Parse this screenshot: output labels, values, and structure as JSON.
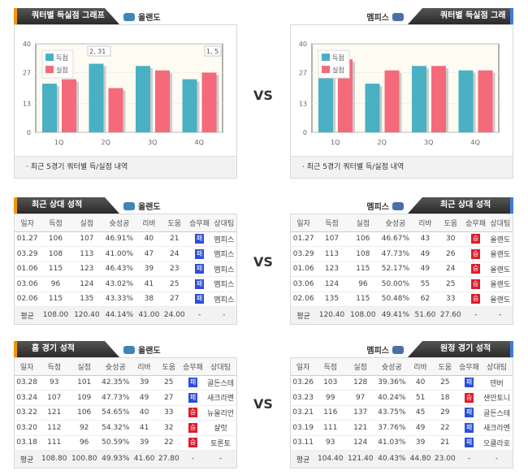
{
  "vs": "VS",
  "home_team": "올랜도",
  "away_team": "멤피스",
  "colors": {
    "score": "#4ab0c4",
    "lost": "#f56a7a",
    "win": "#e01c2c",
    "loss": "#2c4fd6"
  },
  "quarter_graph": {
    "title": "쿼터별 득실점 그래프",
    "footnote": "· 최근 5경기 쿼터별 득/실점 내역"
  },
  "chart_data": [
    {
      "type": "bar",
      "team": "올랜도",
      "categories": [
        "1Q",
        "2Q",
        "3Q",
        "4Q"
      ],
      "yticks": [
        "40",
        "27",
        "13",
        "0"
      ],
      "ylim": [
        0,
        40
      ],
      "legend": [
        "득점",
        "실점"
      ],
      "annotations": [
        "2, 31",
        "1, 5"
      ],
      "series": [
        {
          "name": "득점",
          "values": [
            22,
            31,
            30,
            24
          ]
        },
        {
          "name": "실점",
          "values": [
            24,
            20,
            28,
            27
          ]
        }
      ]
    },
    {
      "type": "bar",
      "team": "멤피스",
      "categories": [
        "1Q",
        "2Q",
        "3Q",
        "4Q"
      ],
      "yticks": [
        "40",
        "27",
        "13",
        "0"
      ],
      "ylim": [
        0,
        40
      ],
      "legend": [
        "득점",
        "실점"
      ],
      "annotations": [],
      "series": [
        {
          "name": "득점",
          "values": [
            28,
            22,
            30,
            28
          ]
        },
        {
          "name": "실점",
          "values": [
            33,
            28,
            30,
            28
          ]
        }
      ]
    }
  ],
  "columns": [
    "일자",
    "득점",
    "실점",
    "슛성공",
    "리바",
    "도움",
    "승무패",
    "상대팀"
  ],
  "tables": [
    {
      "title": "최근 상대 성적",
      "team": "올랜도",
      "rows": [
        [
          "01.27",
          "106",
          "107",
          "46.91%",
          "40",
          "21",
          "패",
          "멤피스"
        ],
        [
          "03.29",
          "108",
          "113",
          "41.00%",
          "47",
          "24",
          "패",
          "멤피스"
        ],
        [
          "01.06",
          "115",
          "123",
          "46.43%",
          "39",
          "23",
          "패",
          "멤피스"
        ],
        [
          "03.06",
          "96",
          "124",
          "43.02%",
          "41",
          "25",
          "패",
          "멤피스"
        ],
        [
          "02.06",
          "115",
          "135",
          "43.33%",
          "38",
          "27",
          "패",
          "멤피스"
        ]
      ],
      "avg": [
        "평균",
        "108.00",
        "120.40",
        "44.14%",
        "41.00",
        "24.00",
        "-",
        "-"
      ]
    },
    {
      "title": "최근 상대 성적",
      "team": "멤피스",
      "rows": [
        [
          "01.27",
          "107",
          "106",
          "46.67%",
          "43",
          "30",
          "승",
          "올랜도"
        ],
        [
          "03.29",
          "113",
          "108",
          "47.73%",
          "49",
          "26",
          "승",
          "올랜도"
        ],
        [
          "01.06",
          "123",
          "115",
          "52.17%",
          "49",
          "24",
          "승",
          "올랜도"
        ],
        [
          "03.06",
          "124",
          "96",
          "50.00%",
          "55",
          "25",
          "승",
          "올랜도"
        ],
        [
          "02.06",
          "135",
          "115",
          "50.48%",
          "62",
          "33",
          "승",
          "올랜도"
        ]
      ],
      "avg": [
        "평균",
        "120.40",
        "108.00",
        "49.41%",
        "51.60",
        "27.60",
        "-",
        "-"
      ]
    },
    {
      "title": "홈 경기 성적",
      "team": "올랜도",
      "rows": [
        [
          "03.28",
          "93",
          "101",
          "42.35%",
          "39",
          "25",
          "패",
          "골든스테"
        ],
        [
          "03.24",
          "107",
          "109",
          "47.73%",
          "49",
          "27",
          "패",
          "새크라멘"
        ],
        [
          "03.22",
          "121",
          "106",
          "54.65%",
          "40",
          "33",
          "승",
          "뉴올리언"
        ],
        [
          "03.20",
          "112",
          "92",
          "54.32%",
          "41",
          "32",
          "승",
          "샬럿"
        ],
        [
          "03.18",
          "111",
          "96",
          "50.59%",
          "39",
          "22",
          "승",
          "토론토"
        ]
      ],
      "avg": [
        "평균",
        "108.80",
        "100.80",
        "49.93%",
        "41.60",
        "27.80",
        "-",
        "-"
      ]
    },
    {
      "title": "원정 경기 성적",
      "team": "멤피스",
      "rows": [
        [
          "03.26",
          "103",
          "128",
          "39.36%",
          "40",
          "25",
          "패",
          "덴버"
        ],
        [
          "03.23",
          "99",
          "97",
          "40.24%",
          "51",
          "18",
          "승",
          "샌안토니"
        ],
        [
          "03.21",
          "116",
          "137",
          "43.75%",
          "45",
          "29",
          "패",
          "골든스테"
        ],
        [
          "03.19",
          "111",
          "121",
          "37.76%",
          "49",
          "22",
          "패",
          "새크라멘"
        ],
        [
          "03.11",
          "93",
          "124",
          "41.03%",
          "39",
          "21",
          "패",
          "오클라호"
        ]
      ],
      "avg": [
        "평균",
        "104.40",
        "121.40",
        "40.43%",
        "44.80",
        "23.00",
        "-",
        "-"
      ]
    }
  ]
}
